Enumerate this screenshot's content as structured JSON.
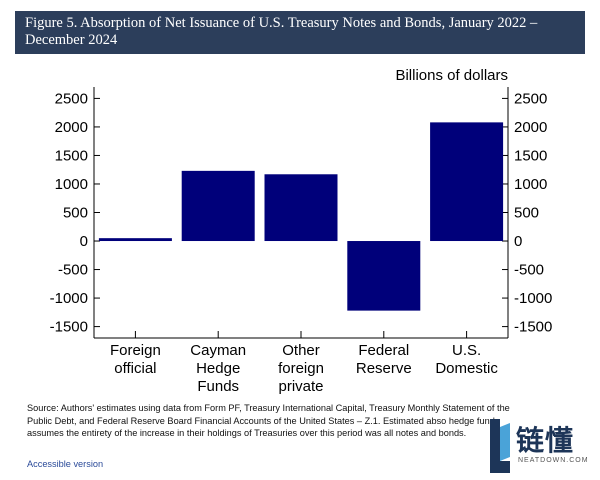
{
  "header": {
    "title": "Figure 5. Absorption of Net Issuance of U.S. Treasury Notes and Bonds, January 2022 – December 2024"
  },
  "chart_data": {
    "type": "bar",
    "unit_label": "Billions of dollars",
    "categories": [
      [
        "Foreign",
        "official"
      ],
      [
        "Cayman",
        "Hedge",
        "Funds"
      ],
      [
        "Other",
        "foreign",
        "private"
      ],
      [
        "Federal",
        "Reserve"
      ],
      [
        "U.S.",
        "Domestic"
      ]
    ],
    "values": [
      50,
      1230,
      1170,
      -1220,
      2080
    ],
    "ylim": [
      -1700,
      2700
    ],
    "yticks": [
      2500,
      2000,
      1500,
      1000,
      500,
      0,
      -500,
      -1000,
      -1500
    ],
    "ytick_labels": [
      "2500",
      "2000",
      "1500",
      "1000",
      "500",
      "0",
      "-500",
      "-1000",
      "-1500"
    ],
    "bar_color": "#00007a",
    "grid": false,
    "dual_y_axis": true
  },
  "footer": {
    "source": "Source: Authors' estimates using data from Form PF, Treasury International Capital, Treasury Monthly Statement of the Public Debt, and Federal Reserve Board Financial Accounts of the United States – Z.1. Estimated abso hedge funds assumes the entirety of the increase in their holdings of Treasuries over this period was all notes and bonds.",
    "accessible_link": "Accessible version"
  },
  "watermark": {
    "text": "链懂",
    "subtext": "NEATDOWN.COM",
    "color": "#1d3558",
    "accent": "#4aa3d8"
  }
}
